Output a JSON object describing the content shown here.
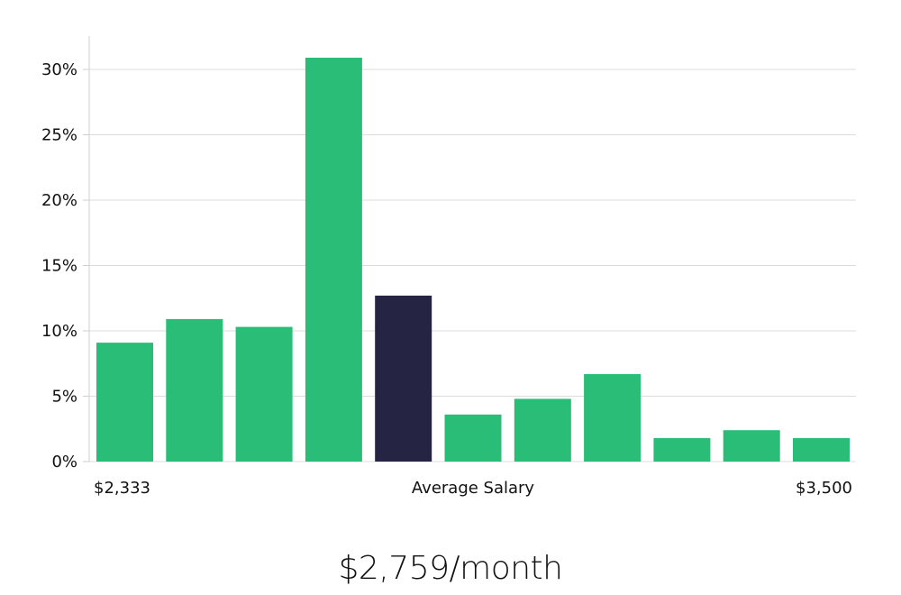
{
  "chart_data": {
    "type": "bar",
    "y_ticks": [
      "0%",
      "5%",
      "10%",
      "15%",
      "20%",
      "25%",
      "30%"
    ],
    "ylim": [
      0,
      32.5
    ],
    "values": [
      9.1,
      10.9,
      10.3,
      30.9,
      12.7,
      3.6,
      4.8,
      6.7,
      1.8,
      2.4,
      1.8
    ],
    "highlight_index": 4,
    "x_labels": {
      "start": "$2,333",
      "middle": "Average Salary",
      "end": "$3,500"
    },
    "grid": true,
    "colors": {
      "bar": "#2abd77",
      "highlight": "#262443",
      "grid": "#dcdcdc"
    }
  },
  "headline": "$2,759/month"
}
